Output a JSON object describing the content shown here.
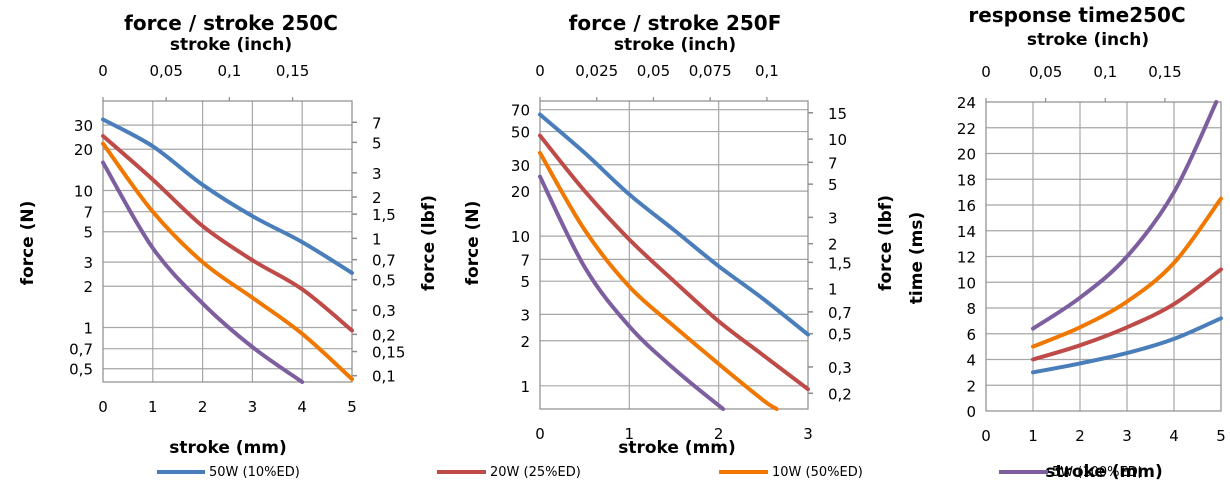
{
  "colors": {
    "50W": "#4a7ebb",
    "20W": "#be4b48",
    "10W": "#f07800",
    "5W": "#7d5fa0"
  },
  "legend": [
    {
      "key": "50W",
      "label": "50W (10%ED)"
    },
    {
      "key": "20W",
      "label": "20W (25%ED)"
    },
    {
      "key": "10W",
      "label": "10W (50%ED)"
    },
    {
      "key": "5W",
      "label": "5W (100%ED)"
    }
  ],
  "chart_data": [
    {
      "type": "line",
      "title": "force / stroke 250C",
      "x2label": "stroke (inch)",
      "xlabel": "stroke (mm)",
      "ylabel": "force (N)",
      "y2label": "force (lbf)",
      "xlim": [
        0,
        5
      ],
      "ylim": [
        0.4,
        45
      ],
      "yscale": "log",
      "grid": true,
      "x_ticks": [
        "0",
        "1",
        "2",
        "3",
        "4",
        "5"
      ],
      "x2_ticks": [
        "0",
        "0,05",
        "0,1",
        "0,15"
      ],
      "y_ticks": [
        "0,5",
        "0,7",
        "1",
        "2",
        "3",
        "5",
        "7",
        "10",
        "20",
        "30"
      ],
      "y2_ticks": [
        "0,1",
        "0,15",
        "0,2",
        "0,3",
        "0,5",
        "0,7",
        "1",
        "1,5",
        "2",
        "3",
        "5",
        "7"
      ],
      "series": [
        {
          "key": "50W",
          "x": [
            0,
            1,
            2,
            3,
            4,
            5
          ],
          "y": [
            33,
            21,
            11,
            6.5,
            4.2,
            2.5
          ]
        },
        {
          "key": "20W",
          "x": [
            0,
            1,
            2,
            3,
            4,
            5
          ],
          "y": [
            25,
            12,
            5.5,
            3.1,
            1.9,
            0.95
          ]
        },
        {
          "key": "10W",
          "x": [
            0,
            1,
            2,
            3,
            4,
            5
          ],
          "y": [
            22,
            7,
            3,
            1.65,
            0.9,
            0.42
          ]
        },
        {
          "key": "5W",
          "x": [
            0,
            1,
            2,
            3,
            4
          ],
          "y": [
            16,
            3.8,
            1.5,
            0.72,
            0.4
          ]
        }
      ]
    },
    {
      "type": "line",
      "title": "force / stroke 250F",
      "x2label": "stroke (inch)",
      "xlabel": "stroke (mm)",
      "ylabel": "force (N)",
      "y2label": "force (lbf)",
      "xlim": [
        0,
        3
      ],
      "ylim": [
        0.7,
        80
      ],
      "yscale": "log",
      "grid": true,
      "x_ticks": [
        "0",
        "1",
        "2",
        "3"
      ],
      "x2_ticks": [
        "0",
        "0,025",
        "0,05",
        "0,075",
        "0,1"
      ],
      "y_ticks": [
        "1",
        "2",
        "3",
        "5",
        "7",
        "10",
        "20",
        "30",
        "50",
        "70"
      ],
      "y2_ticks": [
        "0,2",
        "0,3",
        "0,5",
        "0,7",
        "1",
        "1,5",
        "2",
        "3",
        "5",
        "7",
        "10",
        "15"
      ],
      "series": [
        {
          "key": "50W",
          "x": [
            0,
            0.5,
            1,
            1.5,
            2,
            2.5,
            3
          ],
          "y": [
            65,
            36,
            19,
            11,
            6.3,
            3.8,
            2.2
          ]
        },
        {
          "key": "20W",
          "x": [
            0,
            0.5,
            1,
            1.5,
            2,
            2.5,
            3
          ],
          "y": [
            47,
            20,
            9.5,
            5,
            2.7,
            1.6,
            0.95
          ]
        },
        {
          "key": "10W",
          "x": [
            0,
            0.5,
            1,
            1.5,
            2,
            2.5,
            2.65
          ],
          "y": [
            36,
            11,
            4.6,
            2.5,
            1.4,
            0.8,
            0.7
          ]
        },
        {
          "key": "5W",
          "x": [
            0,
            0.5,
            1,
            1.5,
            2.05
          ],
          "y": [
            25,
            6.2,
            2.5,
            1.3,
            0.7
          ]
        }
      ]
    },
    {
      "type": "line",
      "title": "response time250C",
      "x2label": "stroke (inch)",
      "xlabel": "stroke (mm)",
      "ylabel": "time (ms)",
      "xlim": [
        0,
        5
      ],
      "ylim": [
        0,
        24
      ],
      "yscale": "linear",
      "grid": true,
      "x_ticks": [
        "0",
        "1",
        "2",
        "3",
        "4",
        "5"
      ],
      "x2_ticks": [
        "0",
        "0,05",
        "0,1",
        "0,15"
      ],
      "y_ticks": [
        "0",
        "2",
        "4",
        "6",
        "8",
        "10",
        "12",
        "14",
        "16",
        "18",
        "20",
        "22",
        "24"
      ],
      "series": [
        {
          "key": "50W",
          "x": [
            1,
            2,
            3,
            4,
            5
          ],
          "y": [
            3,
            3.7,
            4.5,
            5.6,
            7.2
          ]
        },
        {
          "key": "20W",
          "x": [
            1,
            2,
            3,
            4,
            5
          ],
          "y": [
            4,
            5.1,
            6.5,
            8.3,
            11
          ]
        },
        {
          "key": "10W",
          "x": [
            1,
            2,
            3,
            4,
            5
          ],
          "y": [
            5,
            6.5,
            8.5,
            11.5,
            16.5
          ]
        },
        {
          "key": "5W",
          "x": [
            1,
            2,
            3,
            4,
            4.9
          ],
          "y": [
            6.4,
            8.8,
            12,
            17,
            24
          ]
        }
      ]
    }
  ]
}
